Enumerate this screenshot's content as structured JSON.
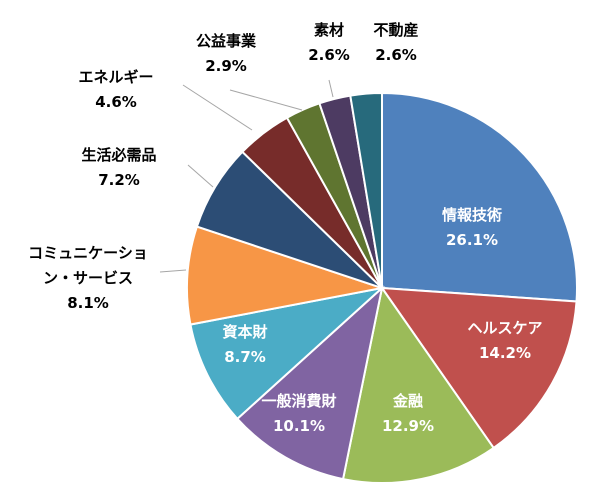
{
  "chart_data": {
    "type": "pie",
    "start": "12 o'clock",
    "direction": "clockwise",
    "slices": [
      {
        "label": "情報技術",
        "value": 26.1,
        "display": "26.1%",
        "color": "#4F81BD",
        "text_color": "#ffffff"
      },
      {
        "label": "ヘルスケア",
        "value": 14.2,
        "display": "14.2%",
        "color": "#C0504D",
        "text_color": "#ffffff"
      },
      {
        "label": "金融",
        "value": 12.9,
        "display": "12.9%",
        "color": "#9BBB59",
        "text_color": "#ffffff"
      },
      {
        "label": "一般消費財",
        "value": 10.1,
        "display": "10.1%",
        "color": "#8064A2",
        "text_color": "#ffffff"
      },
      {
        "label": "資本財",
        "value": 8.7,
        "display": "8.7%",
        "color": "#4BACC6",
        "text_color": "#ffffff"
      },
      {
        "label": "コミュニケーション・サービス",
        "value": 8.1,
        "display": "8.1%",
        "color": "#F79646",
        "text_color": "#000000"
      },
      {
        "label": "生活必需品",
        "value": 7.2,
        "display": "7.2%",
        "color": "#2C4D75",
        "text_color": "#000000"
      },
      {
        "label": "エネルギー",
        "value": 4.6,
        "display": "4.6%",
        "color": "#772C2A",
        "text_color": "#000000"
      },
      {
        "label": "公益事業",
        "value": 2.9,
        "display": "2.9%",
        "color": "#5F7530",
        "text_color": "#000000"
      },
      {
        "label": "素材",
        "value": 2.6,
        "display": "2.6%",
        "color": "#4D3B62",
        "text_color": "#000000"
      },
      {
        "label": "不動産",
        "value": 2.6,
        "display": "2.6%",
        "color": "#276A7C",
        "text_color": "#000000"
      }
    ]
  }
}
